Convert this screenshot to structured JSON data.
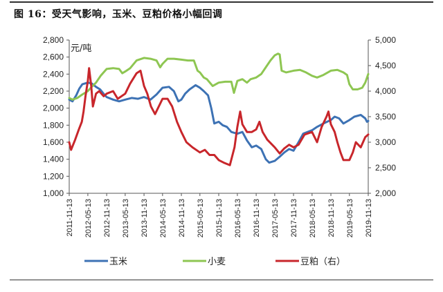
{
  "title": "图 16：受天气影响，玉米、豆粕价格小幅回调",
  "chart_data": {
    "type": "line",
    "title": "图 16：受天气影响，玉米、豆粕价格小幅回调",
    "y_unit": "元/吨",
    "left_axis": {
      "min": 1000,
      "max": 2800,
      "ticks": [
        "1,000",
        "1,200",
        "1,400",
        "1,600",
        "1,800",
        "2,000",
        "2,200",
        "2,400",
        "2,600",
        "2,800"
      ]
    },
    "right_axis": {
      "min": 2000,
      "max": 5000,
      "ticks": [
        "2,000",
        "2,500",
        "3,000",
        "3,500",
        "4,000",
        "4,500",
        "5,000"
      ]
    },
    "x_ticks": [
      "2011-11-13",
      "2012-05-13",
      "2012-11-13",
      "2013-05-13",
      "2013-11-13",
      "2014-05-13",
      "2014-11-13",
      "2015-05-13",
      "2015-11-13",
      "2016-05-13",
      "2016-11-13",
      "2017-05-13",
      "2017-11-13",
      "2018-05-13",
      "2018-11-13",
      "2019-05-13",
      "2019-11-13"
    ],
    "x_range": [
      "2011-11-13",
      "2019-11-13"
    ],
    "grid": false,
    "legend_position": "bottom",
    "series": [
      {
        "name": "玉米",
        "axis": "left",
        "color": "#3d72b4",
        "points": [
          [
            "2011-11-13",
            2100
          ],
          [
            "2011-12-15",
            2080
          ],
          [
            "2012-01-20",
            2150
          ],
          [
            "2012-02-20",
            2230
          ],
          [
            "2012-03-20",
            2280
          ],
          [
            "2012-05-13",
            2300
          ],
          [
            "2012-06-20",
            2290
          ],
          [
            "2012-08-01",
            2250
          ],
          [
            "2012-09-10",
            2220
          ],
          [
            "2012-10-20",
            2160
          ],
          [
            "2012-11-13",
            2130
          ],
          [
            "2013-01-15",
            2100
          ],
          [
            "2013-03-15",
            2080
          ],
          [
            "2013-05-13",
            2100
          ],
          [
            "2013-07-15",
            2120
          ],
          [
            "2013-09-15",
            2110
          ],
          [
            "2013-11-13",
            2130
          ],
          [
            "2014-01-15",
            2100
          ],
          [
            "2014-03-15",
            2160
          ],
          [
            "2014-05-13",
            2240
          ],
          [
            "2014-07-15",
            2250
          ],
          [
            "2014-09-01",
            2200
          ],
          [
            "2014-10-15",
            2080
          ],
          [
            "2014-11-13",
            2100
          ],
          [
            "2014-12-20",
            2170
          ],
          [
            "2015-02-01",
            2220
          ],
          [
            "2015-04-01",
            2270
          ],
          [
            "2015-05-13",
            2240
          ],
          [
            "2015-06-20",
            2200
          ],
          [
            "2015-08-01",
            2150
          ],
          [
            "2015-09-01",
            2000
          ],
          [
            "2015-10-01",
            1820
          ],
          [
            "2015-11-13",
            1840
          ],
          [
            "2015-12-20",
            1800
          ],
          [
            "2016-02-01",
            1780
          ],
          [
            "2016-03-15",
            1720
          ],
          [
            "2016-05-13",
            1700
          ],
          [
            "2016-07-01",
            1720
          ],
          [
            "2016-08-15",
            1620
          ],
          [
            "2016-10-01",
            1540
          ],
          [
            "2016-11-13",
            1560
          ],
          [
            "2017-01-01",
            1520
          ],
          [
            "2017-02-15",
            1400
          ],
          [
            "2017-03-20",
            1360
          ],
          [
            "2017-05-13",
            1380
          ],
          [
            "2017-07-01",
            1430
          ],
          [
            "2017-08-15",
            1480
          ],
          [
            "2017-10-01",
            1520
          ],
          [
            "2017-11-13",
            1500
          ],
          [
            "2018-01-01",
            1600
          ],
          [
            "2018-02-15",
            1700
          ],
          [
            "2018-05-13",
            1740
          ],
          [
            "2018-07-01",
            1780
          ],
          [
            "2018-09-01",
            1820
          ],
          [
            "2018-11-13",
            1860
          ],
          [
            "2018-12-20",
            1900
          ],
          [
            "2019-02-01",
            1880
          ],
          [
            "2019-03-15",
            1820
          ],
          [
            "2019-05-13",
            1860
          ],
          [
            "2019-07-01",
            1900
          ],
          [
            "2019-09-01",
            1920
          ],
          [
            "2019-10-15",
            1880
          ],
          [
            "2019-11-01",
            1840
          ],
          [
            "2019-11-13",
            1850
          ]
        ]
      },
      {
        "name": "小麦",
        "axis": "left",
        "color": "#8ec652",
        "points": [
          [
            "2011-11-13",
            2120
          ],
          [
            "2011-12-15",
            2100
          ],
          [
            "2012-02-01",
            2120
          ],
          [
            "2012-03-20",
            2160
          ],
          [
            "2012-05-13",
            2200
          ],
          [
            "2012-06-20",
            2250
          ],
          [
            "2012-08-01",
            2300
          ],
          [
            "2012-09-15",
            2380
          ],
          [
            "2012-11-13",
            2460
          ],
          [
            "2013-01-15",
            2470
          ],
          [
            "2013-03-15",
            2460
          ],
          [
            "2013-04-15",
            2410
          ],
          [
            "2013-05-13",
            2430
          ],
          [
            "2013-07-01",
            2470
          ],
          [
            "2013-09-01",
            2560
          ],
          [
            "2013-11-13",
            2590
          ],
          [
            "2014-01-15",
            2580
          ],
          [
            "2014-03-15",
            2560
          ],
          [
            "2014-04-20",
            2480
          ],
          [
            "2014-05-13",
            2520
          ],
          [
            "2014-07-01",
            2580
          ],
          [
            "2014-09-01",
            2580
          ],
          [
            "2014-11-13",
            2570
          ],
          [
            "2015-01-15",
            2560
          ],
          [
            "2015-03-15",
            2560
          ],
          [
            "2015-04-20",
            2440
          ],
          [
            "2015-05-13",
            2420
          ],
          [
            "2015-06-20",
            2360
          ],
          [
            "2015-07-20",
            2340
          ],
          [
            "2015-09-15",
            2260
          ],
          [
            "2015-11-13",
            2300
          ],
          [
            "2016-01-15",
            2310
          ],
          [
            "2016-03-15",
            2310
          ],
          [
            "2016-04-10",
            2180
          ],
          [
            "2016-05-13",
            2320
          ],
          [
            "2016-07-01",
            2340
          ],
          [
            "2016-08-15",
            2300
          ],
          [
            "2016-09-20",
            2340
          ],
          [
            "2016-11-13",
            2360
          ],
          [
            "2017-01-01",
            2400
          ],
          [
            "2017-02-15",
            2480
          ],
          [
            "2017-04-01",
            2560
          ],
          [
            "2017-05-13",
            2620
          ],
          [
            "2017-06-15",
            2640
          ],
          [
            "2017-07-01",
            2630
          ],
          [
            "2017-07-20",
            2440
          ],
          [
            "2017-09-01",
            2420
          ],
          [
            "2017-11-13",
            2440
          ],
          [
            "2018-01-15",
            2450
          ],
          [
            "2018-03-15",
            2420
          ],
          [
            "2018-05-13",
            2380
          ],
          [
            "2018-07-01",
            2360
          ],
          [
            "2018-09-01",
            2390
          ],
          [
            "2018-11-13",
            2440
          ],
          [
            "2019-01-15",
            2450
          ],
          [
            "2019-03-15",
            2420
          ],
          [
            "2019-04-20",
            2390
          ],
          [
            "2019-05-13",
            2280
          ],
          [
            "2019-06-15",
            2220
          ],
          [
            "2019-08-01",
            2220
          ],
          [
            "2019-09-15",
            2240
          ],
          [
            "2019-10-15",
            2300
          ],
          [
            "2019-11-13",
            2400
          ]
        ]
      },
      {
        "name": "豆粕（右）",
        "axis": "right",
        "color": "#c8262b",
        "points": [
          [
            "2011-11-13",
            3000
          ],
          [
            "2011-12-01",
            2850
          ],
          [
            "2012-01-10",
            3050
          ],
          [
            "2012-02-15",
            3250
          ],
          [
            "2012-03-15",
            3400
          ],
          [
            "2012-04-01",
            3600
          ],
          [
            "2012-04-20",
            3900
          ],
          [
            "2012-05-13",
            4200
          ],
          [
            "2012-05-25",
            4450
          ],
          [
            "2012-06-15",
            4100
          ],
          [
            "2012-07-01",
            3700
          ],
          [
            "2012-08-01",
            3950
          ],
          [
            "2012-09-01",
            4000
          ],
          [
            "2012-10-15",
            3900
          ],
          [
            "2012-11-13",
            3950
          ],
          [
            "2013-01-15",
            4000
          ],
          [
            "2013-03-01",
            3850
          ],
          [
            "2013-05-13",
            3950
          ],
          [
            "2013-07-01",
            4150
          ],
          [
            "2013-09-01",
            4350
          ],
          [
            "2013-10-10",
            4400
          ],
          [
            "2013-11-13",
            4100
          ],
          [
            "2013-12-15",
            3950
          ],
          [
            "2014-01-20",
            3700
          ],
          [
            "2014-03-01",
            3550
          ],
          [
            "2014-05-13",
            3850
          ],
          [
            "2014-07-01",
            3850
          ],
          [
            "2014-08-15",
            3700
          ],
          [
            "2014-10-01",
            3400
          ],
          [
            "2014-11-13",
            3200
          ],
          [
            "2015-01-01",
            3000
          ],
          [
            "2015-03-01",
            2900
          ],
          [
            "2015-05-13",
            2800
          ],
          [
            "2015-07-01",
            2850
          ],
          [
            "2015-08-15",
            2750
          ],
          [
            "2015-10-01",
            2750
          ],
          [
            "2015-11-13",
            2650
          ],
          [
            "2016-01-01",
            2600
          ],
          [
            "2016-03-01",
            2550
          ],
          [
            "2016-04-15",
            2900
          ],
          [
            "2016-05-13",
            3300
          ],
          [
            "2016-06-10",
            3600
          ],
          [
            "2016-07-01",
            3350
          ],
          [
            "2016-08-15",
            3200
          ],
          [
            "2016-10-01",
            3200
          ],
          [
            "2016-11-13",
            3250
          ],
          [
            "2016-12-15",
            3400
          ],
          [
            "2017-01-15",
            3200
          ],
          [
            "2017-03-01",
            3050
          ],
          [
            "2017-05-13",
            2900
          ],
          [
            "2017-07-01",
            2780
          ],
          [
            "2017-08-15",
            2880
          ],
          [
            "2017-10-01",
            2950
          ],
          [
            "2017-11-13",
            2900
          ],
          [
            "2018-01-01",
            2950
          ],
          [
            "2018-03-01",
            3150
          ],
          [
            "2018-05-13",
            3200
          ],
          [
            "2018-07-01",
            3000
          ],
          [
            "2018-08-15",
            3300
          ],
          [
            "2018-10-01",
            3500
          ],
          [
            "2018-10-20",
            3600
          ],
          [
            "2018-11-13",
            3350
          ],
          [
            "2018-12-20",
            3200
          ],
          [
            "2019-01-15",
            3000
          ],
          [
            "2019-02-15",
            2800
          ],
          [
            "2019-03-15",
            2650
          ],
          [
            "2019-05-13",
            2650
          ],
          [
            "2019-06-15",
            2800
          ],
          [
            "2019-07-15",
            3000
          ],
          [
            "2019-09-01",
            2900
          ],
          [
            "2019-10-15",
            3100
          ],
          [
            "2019-11-13",
            3150
          ]
        ]
      }
    ]
  }
}
